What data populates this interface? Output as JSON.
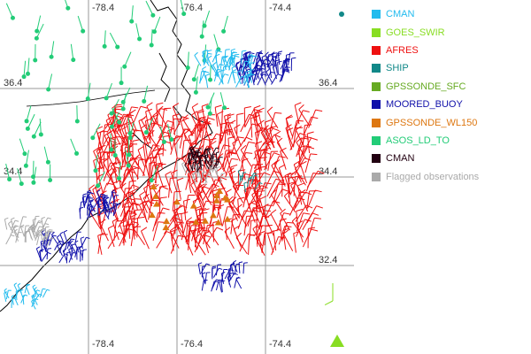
{
  "map": {
    "lon_labels": [
      "-78.4",
      "-76.4",
      "-74.4"
    ],
    "lat_labels": [
      "36.4",
      "34.4",
      "32.4"
    ],
    "colors": {
      "coast": "#000000",
      "grid": "#999999"
    }
  },
  "legend": {
    "items": [
      {
        "label": "CMAN",
        "color": "#22bbee"
      },
      {
        "label": "GOES_SWIR",
        "color": "#88dd22"
      },
      {
        "label": "AFRES",
        "color": "#ee1111"
      },
      {
        "label": "SHIP",
        "color": "#118888"
      },
      {
        "label": "GPSSONDE_SFC",
        "color": "#66aa22"
      },
      {
        "label": "MOORED_BUOY",
        "color": "#1111aa"
      },
      {
        "label": "GPSSONDE_WL150",
        "color": "#dd7711"
      },
      {
        "label": "ASOS_LD_TO",
        "color": "#22cc77"
      },
      {
        "label": "CMAN",
        "color": "#220011"
      },
      {
        "label": "Flagged observations",
        "color": "#aaaaaa"
      }
    ]
  }
}
